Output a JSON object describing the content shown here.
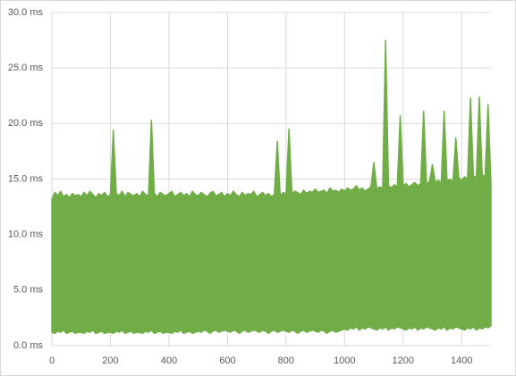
{
  "chart_data": {
    "type": "range-area",
    "x": [
      0,
      10,
      20,
      30,
      40,
      50,
      60,
      70,
      80,
      90,
      100,
      110,
      120,
      130,
      140,
      150,
      160,
      170,
      180,
      190,
      200,
      210,
      220,
      230,
      240,
      250,
      260,
      270,
      280,
      290,
      300,
      310,
      320,
      330,
      340,
      350,
      360,
      370,
      380,
      390,
      400,
      410,
      420,
      430,
      440,
      450,
      460,
      470,
      480,
      490,
      500,
      510,
      520,
      530,
      540,
      550,
      560,
      570,
      580,
      590,
      600,
      610,
      620,
      630,
      640,
      650,
      660,
      670,
      680,
      690,
      700,
      710,
      720,
      730,
      740,
      750,
      760,
      770,
      780,
      790,
      800,
      810,
      820,
      830,
      840,
      850,
      860,
      870,
      880,
      890,
      900,
      910,
      920,
      930,
      940,
      950,
      960,
      970,
      980,
      990,
      1000,
      1010,
      1020,
      1030,
      1040,
      1050,
      1060,
      1070,
      1080,
      1090,
      1100,
      1110,
      1120,
      1130,
      1140,
      1150,
      1160,
      1170,
      1180,
      1190,
      1200,
      1210,
      1220,
      1230,
      1240,
      1250,
      1260,
      1270,
      1280,
      1290,
      1300,
      1310,
      1320,
      1330,
      1340,
      1350,
      1360,
      1370,
      1380,
      1390,
      1400,
      1410,
      1420,
      1430,
      1440,
      1450,
      1460,
      1470,
      1480,
      1490,
      1500
    ],
    "series": [
      {
        "color": "#70ad47",
        "high": [
          13.2,
          13.8,
          13.5,
          13.9,
          13.4,
          13.6,
          13.3,
          13.7,
          13.5,
          13.6,
          13.4,
          13.8,
          13.5,
          13.9,
          13.6,
          13.3,
          13.7,
          13.5,
          13.8,
          13.4,
          13.6,
          19.4,
          13.7,
          13.5,
          13.9,
          13.4,
          13.8,
          13.6,
          13.5,
          13.7,
          13.4,
          13.9,
          13.6,
          13.5,
          20.3,
          13.7,
          13.4,
          13.8,
          13.6,
          13.5,
          13.7,
          13.9,
          13.4,
          13.6,
          13.8,
          13.5,
          13.7,
          13.4,
          13.9,
          13.6,
          13.5,
          13.8,
          13.6,
          13.4,
          13.7,
          13.9,
          13.5,
          13.6,
          13.8,
          13.4,
          13.7,
          13.5,
          13.9,
          13.6,
          13.4,
          13.8,
          13.5,
          13.7,
          13.6,
          13.9,
          13.4,
          13.6,
          13.8,
          13.5,
          13.7,
          13.4,
          13.6,
          18.4,
          13.5,
          13.8,
          13.6,
          19.5,
          13.7,
          13.9,
          13.8,
          13.6,
          14.0,
          13.7,
          13.9,
          13.8,
          14.1,
          13.8,
          13.9,
          14.0,
          13.7,
          14.2,
          13.9,
          14.0,
          13.8,
          14.1,
          13.9,
          14.2,
          14.0,
          14.1,
          14.4,
          14.0,
          14.2,
          13.9,
          14.1,
          14.3,
          16.5,
          14.1,
          14.3,
          14.2,
          27.5,
          14.4,
          14.2,
          14.5,
          14.3,
          20.7,
          14.4,
          14.6,
          14.3,
          14.5,
          14.7,
          14.4,
          14.6,
          21.1,
          14.5,
          14.8,
          16.3,
          14.7,
          14.9,
          14.6,
          21.1,
          14.8,
          15.0,
          14.7,
          18.7,
          15.1,
          14.9,
          15.2,
          15.0,
          22.3,
          15.3,
          15.1,
          22.4,
          15.4,
          15.2,
          21.7,
          14.5
        ],
        "low": [
          1.2,
          1.1,
          1.3,
          1.2,
          1.4,
          1.1,
          1.2,
          1.3,
          1.1,
          1.2,
          1.2,
          1.1,
          1.3,
          1.2,
          1.4,
          1.1,
          1.2,
          1.3,
          1.1,
          1.2,
          1.2,
          1.1,
          1.3,
          1.2,
          1.4,
          1.1,
          1.2,
          1.3,
          1.1,
          1.2,
          1.2,
          1.1,
          1.3,
          1.2,
          1.4,
          1.1,
          1.2,
          1.3,
          1.1,
          1.2,
          1.2,
          1.1,
          1.3,
          1.2,
          1.4,
          1.1,
          1.2,
          1.3,
          1.1,
          1.2,
          1.3,
          1.2,
          1.4,
          1.3,
          1.1,
          1.3,
          1.4,
          1.2,
          1.3,
          1.4,
          1.3,
          1.2,
          1.4,
          1.3,
          1.1,
          1.3,
          1.4,
          1.2,
          1.3,
          1.4,
          1.3,
          1.2,
          1.4,
          1.3,
          1.1,
          1.3,
          1.4,
          1.2,
          1.3,
          1.4,
          1.3,
          1.2,
          1.4,
          1.3,
          1.1,
          1.3,
          1.4,
          1.2,
          1.3,
          1.4,
          1.3,
          1.2,
          1.4,
          1.3,
          1.1,
          1.3,
          1.4,
          1.2,
          1.3,
          1.4,
          1.5,
          1.4,
          1.6,
          1.5,
          1.7,
          1.4,
          1.6,
          1.5,
          1.7,
          1.6,
          1.5,
          1.4,
          1.6,
          1.5,
          1.7,
          1.4,
          1.6,
          1.5,
          1.7,
          1.6,
          1.5,
          1.4,
          1.6,
          1.5,
          1.7,
          1.4,
          1.6,
          1.5,
          1.7,
          1.6,
          1.5,
          1.4,
          1.6,
          1.5,
          1.7,
          1.4,
          1.6,
          1.5,
          1.7,
          1.6,
          1.5,
          1.4,
          1.6,
          1.5,
          1.7,
          1.4,
          1.6,
          1.5,
          1.7,
          1.6,
          1.8
        ]
      }
    ],
    "xlim": [
      0,
      1500
    ],
    "xticks": [
      0,
      200,
      400,
      600,
      800,
      1000,
      1200,
      1400
    ],
    "ylim": [
      0,
      30
    ],
    "yticks": [
      {
        "value": 0,
        "label": "0.0 ms"
      },
      {
        "value": 5,
        "label": "5.0 ms"
      },
      {
        "value": 10,
        "label": "10.0 ms"
      },
      {
        "value": 15,
        "label": "15.0 ms"
      },
      {
        "value": 20,
        "label": "20.0 ms"
      },
      {
        "value": 25,
        "label": "25.0 ms"
      },
      {
        "value": 30,
        "label": "30.0 ms"
      }
    ],
    "grid": true
  }
}
